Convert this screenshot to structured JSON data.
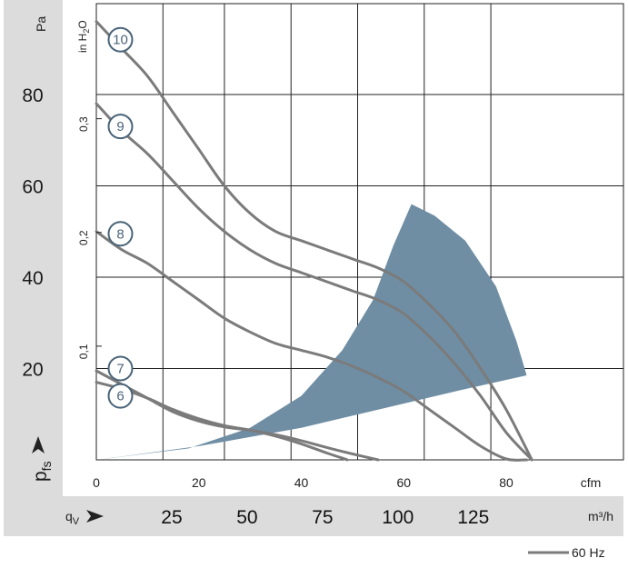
{
  "chart_data": {
    "type": "line",
    "y_axis": {
      "unit": "Pa",
      "symbol": "p",
      "symbol_sub": "fs",
      "ticks": [
        20,
        40,
        60,
        80
      ],
      "range": [
        0,
        96
      ]
    },
    "y2_axis": {
      "unit": "in H",
      "unit_sub": "2",
      "unit_tail": "O",
      "ticks": [
        "0,1",
        "0,2",
        "0,3"
      ],
      "tick_values_pa": [
        24.9,
        49.8,
        74.7
      ]
    },
    "x_axis": {
      "unit": "cfm",
      "ticks": [
        0,
        20,
        40,
        60,
        80
      ],
      "range": [
        0,
        85
      ]
    },
    "x2_axis": {
      "symbol": "q",
      "symbol_sub": "V",
      "unit": "m³/h",
      "ticks": [
        25,
        50,
        75,
        100,
        125
      ]
    },
    "legend": [
      {
        "name": "60 Hz",
        "color": "#7b7b7b"
      }
    ],
    "operating_region_color": "#6f8ea4",
    "operating_region": [
      [
        0,
        0
      ],
      [
        20,
        3
      ],
      [
        40,
        7
      ],
      [
        55,
        11
      ],
      [
        72,
        15.5
      ],
      [
        84,
        18.5
      ],
      [
        82,
        26
      ],
      [
        78,
        38
      ],
      [
        72,
        48
      ],
      [
        66,
        53.5
      ],
      [
        61.5,
        56
      ],
      [
        58,
        47
      ],
      [
        54,
        35
      ],
      [
        48,
        24
      ],
      [
        40,
        14
      ],
      [
        30,
        7
      ],
      [
        18,
        2.5
      ]
    ],
    "series": [
      {
        "label": "10",
        "x": [
          0,
          5,
          10,
          15,
          20,
          25,
          30,
          35,
          40,
          45,
          50,
          55,
          60,
          65,
          70,
          75,
          80,
          85
        ],
        "y": [
          96,
          90,
          84,
          76,
          68,
          60,
          54,
          50,
          48,
          46,
          44,
          42,
          39,
          34,
          28,
          20,
          11,
          0
        ]
      },
      {
        "label": "9",
        "x": [
          0,
          5,
          10,
          15,
          20,
          25,
          30,
          35,
          40,
          45,
          50,
          55,
          60,
          65,
          70,
          75,
          80,
          85
        ],
        "y": [
          78,
          72,
          67,
          61,
          55,
          50,
          46,
          43,
          41,
          39,
          37,
          35,
          32,
          27,
          21,
          14,
          6,
          0
        ]
      },
      {
        "label": "8",
        "x": [
          0,
          5,
          10,
          15,
          20,
          25,
          30,
          35,
          40,
          45,
          50,
          55,
          60,
          65,
          70,
          75,
          80,
          84
        ],
        "y": [
          50,
          46,
          43,
          39,
          35,
          31,
          28,
          25.5,
          24,
          22.5,
          20.5,
          18,
          15,
          11,
          7,
          3,
          0.2,
          0
        ]
      },
      {
        "label": "7",
        "x": [
          0,
          5,
          10,
          15,
          20,
          25,
          30,
          35,
          40,
          45,
          50,
          55
        ],
        "y": [
          19.5,
          16.5,
          13.5,
          10.5,
          8.5,
          7.2,
          6.5,
          5.5,
          4.2,
          2.7,
          1.3,
          0
        ]
      },
      {
        "label": "6",
        "x": [
          0,
          5,
          10,
          15,
          20,
          25,
          30,
          35,
          40,
          45,
          49
        ],
        "y": [
          17,
          15.5,
          13.5,
          11,
          9,
          7.5,
          6.5,
          5.2,
          3.5,
          1.5,
          0
        ]
      }
    ],
    "curve_label_positions": [
      {
        "label": "10",
        "x": 4.7,
        "y": 92
      },
      {
        "label": "9",
        "x": 4.7,
        "y": 73
      },
      {
        "label": "8",
        "x": 4.7,
        "y": 49.5
      },
      {
        "label": "7",
        "x": 4.7,
        "y": 20
      },
      {
        "label": "6",
        "x": 4.7,
        "y": 14
      }
    ]
  }
}
